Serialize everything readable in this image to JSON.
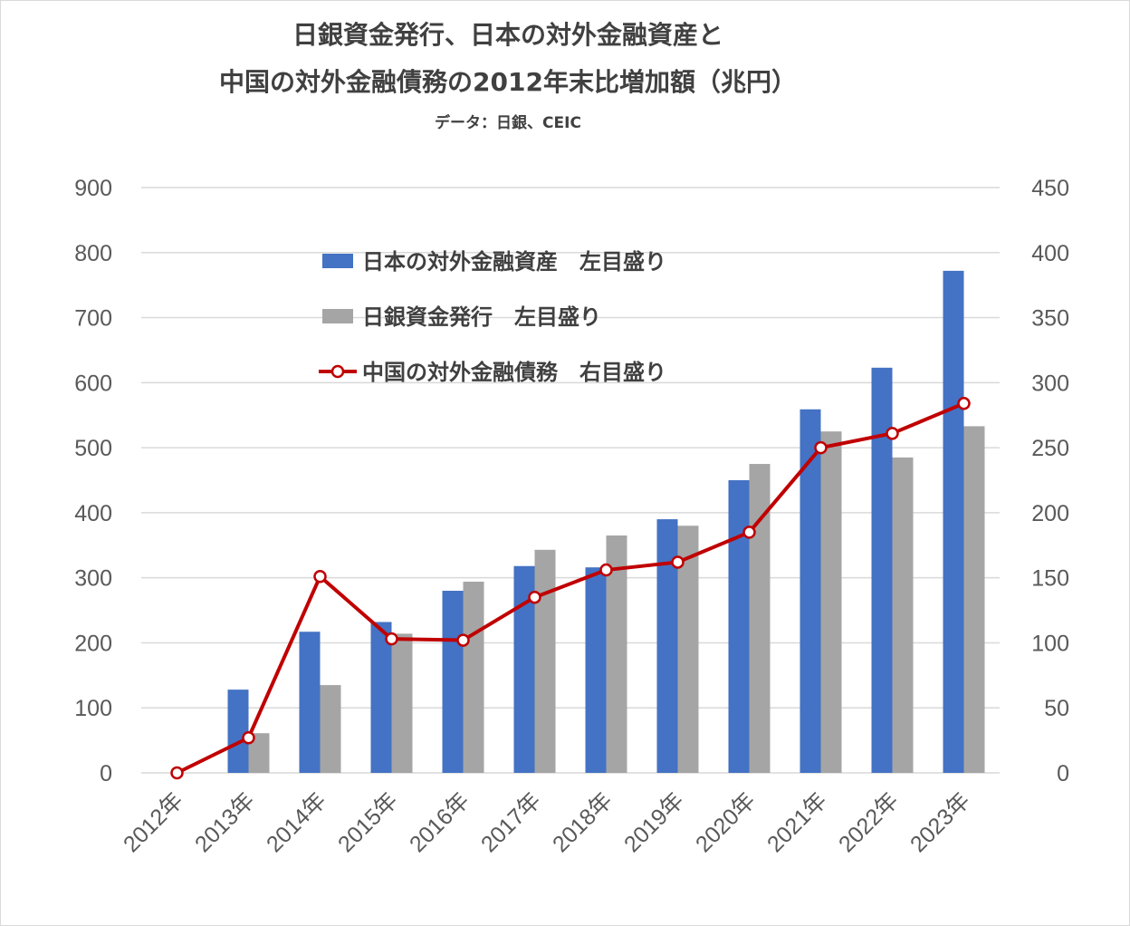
{
  "chart": {
    "title_line1": "日銀資金発行、日本の対外金融資産と",
    "title_line2": "中国の対外金融債務の2012年末比増加額（兆円）",
    "subtitle": "データ：日銀、CEIC"
  },
  "colors": {
    "assets": "#4472C4",
    "boj": "#A5A5A5",
    "china": "#C00000",
    "grid": "#d9d9d9",
    "tick": "#595959"
  },
  "chart_data": {
    "type": "bar",
    "categories": [
      "2012年",
      "2013年",
      "2014年",
      "2015年",
      "2016年",
      "2017年",
      "2018年",
      "2019年",
      "2020年",
      "2021年",
      "2022年",
      "2023年"
    ],
    "series": [
      {
        "name": "日本の対外金融資産　左目盛り",
        "type": "bar",
        "axis": "left",
        "values": [
          0,
          128,
          217,
          232,
          280,
          318,
          316,
          390,
          450,
          559,
          623,
          772
        ]
      },
      {
        "name": "日銀資金発行　左目盛り",
        "type": "bar",
        "axis": "left",
        "values": [
          0,
          61,
          135,
          214,
          294,
          343,
          365,
          380,
          475,
          525,
          485,
          533
        ]
      },
      {
        "name": "中国の対外金融債務　右目盛り",
        "type": "line",
        "axis": "right",
        "values": [
          0,
          27,
          151,
          103,
          102,
          135,
          156,
          162,
          185,
          250,
          261,
          284
        ]
      }
    ],
    "y_left": {
      "min": 0,
      "max": 900,
      "step": 100,
      "ticks": [
        "0",
        "100",
        "200",
        "300",
        "400",
        "500",
        "600",
        "700",
        "800",
        "900"
      ]
    },
    "y_right": {
      "min": 0,
      "max": 450,
      "step": 50,
      "ticks": [
        "0",
        "50",
        "100",
        "150",
        "200",
        "250",
        "300",
        "350",
        "400",
        "450"
      ]
    },
    "grid": true,
    "legend_position": "top-left inside plot"
  }
}
